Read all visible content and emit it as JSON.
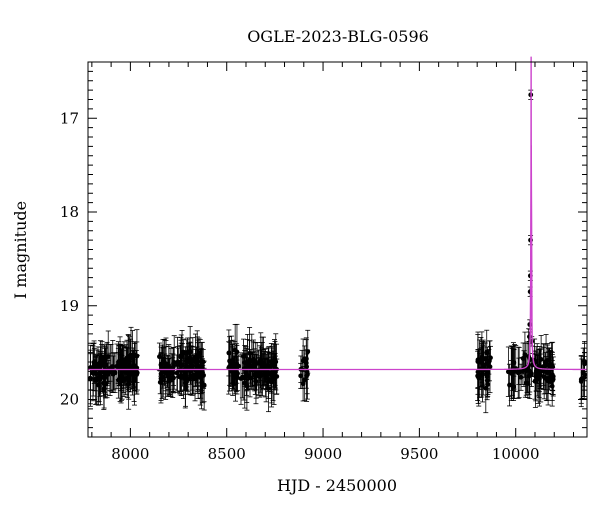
{
  "chart_data": {
    "type": "scatter",
    "title": "OGLE-2023-BLG-0596",
    "xlabel": "HJD - 2450000",
    "ylabel": "I magnitude",
    "xlim": [
      7780,
      10370
    ],
    "ylim": [
      20.4,
      16.4
    ],
    "y_inverted": true,
    "grid": false,
    "x_ticks": [
      8000,
      8500,
      9000,
      9500,
      10000
    ],
    "y_ticks": [
      17,
      18,
      19,
      20
    ],
    "baseline_mag": 19.68,
    "model_color": "#cc44cc",
    "point_color": "#000000",
    "seasons": [
      {
        "start": 7790,
        "end": 8040,
        "n": 110
      },
      {
        "start": 8150,
        "end": 8390,
        "n": 110
      },
      {
        "start": 8510,
        "end": 8760,
        "n": 110
      },
      {
        "start": 8880,
        "end": 8925,
        "n": 14
      },
      {
        "start": 9800,
        "end": 9870,
        "n": 34
      },
      {
        "start": 9960,
        "end": 10200,
        "n": 80
      },
      {
        "start": 10330,
        "end": 10370,
        "n": 8
      }
    ],
    "event": {
      "t0": 10080,
      "peak_points": [
        {
          "x": 10078,
          "y": 16.75
        },
        {
          "x": 10077,
          "y": 18.3
        },
        {
          "x": 10076,
          "y": 18.68
        },
        {
          "x": 10075,
          "y": 18.85
        },
        {
          "x": 10073,
          "y": 19.2
        },
        {
          "x": 10071,
          "y": 19.33
        },
        {
          "x": 10083,
          "y": 19.38
        }
      ]
    }
  }
}
